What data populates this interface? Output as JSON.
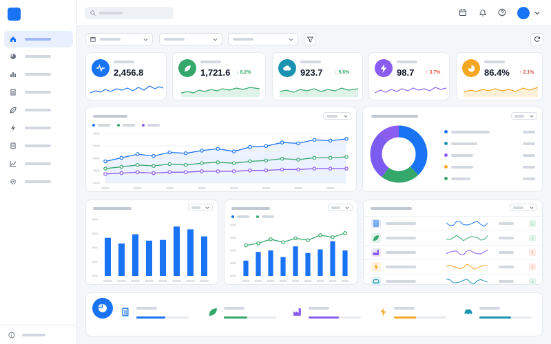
{
  "colors": {
    "accent": "#1a73f2",
    "green": "#34a86b",
    "purple": "#8a5cf0",
    "orange": "#f5a623",
    "teal": "#1a93b0",
    "red": "#e0554b"
  },
  "sidebar": {
    "items": [
      {
        "icon": "home-icon",
        "active": true
      },
      {
        "icon": "pie-chart-icon"
      },
      {
        "icon": "bar-chart-icon"
      },
      {
        "icon": "building-icon"
      },
      {
        "icon": "leaf-icon"
      },
      {
        "icon": "bolt-icon"
      },
      {
        "icon": "document-icon"
      },
      {
        "icon": "line-chart-icon"
      },
      {
        "icon": "gear-icon"
      }
    ],
    "footer_icon": "info-icon"
  },
  "topbar": {
    "icons": [
      "calendar-icon",
      "bell-icon",
      "help-icon",
      "avatar",
      "chevron-down-icon"
    ]
  },
  "kpis": [
    {
      "icon": "activity-icon",
      "color": "#1a73f2",
      "value": "2,456.8",
      "delta": "",
      "trend": "none"
    },
    {
      "icon": "leaf-icon",
      "color": "#34a86b",
      "value": "1,721.6",
      "delta": "↓ 8.2%",
      "trend": "down"
    },
    {
      "icon": "cloud-icon",
      "color": "#1a93b0",
      "value": "923.7",
      "delta": "↓ 5.6%",
      "trend": "down"
    },
    {
      "icon": "bolt-icon",
      "color": "#8a5cf0",
      "value": "98.7",
      "delta": "↑ 3.7%",
      "trend": "up"
    },
    {
      "icon": "pie-chart-icon",
      "color": "#f5a623",
      "value": "86.4%",
      "delta": "↑ 2.1%",
      "trend": "up"
    }
  ],
  "chart_data": [
    {
      "type": "line",
      "series": [
        {
          "values": [
            24,
            28,
            32,
            30,
            34,
            33,
            36,
            38,
            35,
            40,
            41,
            45,
            44,
            48,
            47,
            49
          ]
        },
        {
          "values": [
            16,
            18,
            20,
            19,
            21,
            20,
            22,
            23,
            22,
            24,
            25,
            27,
            26,
            28,
            28,
            29
          ]
        },
        {
          "values": [
            10,
            11,
            12,
            11,
            12,
            12,
            13,
            13,
            13,
            14,
            14,
            15,
            15,
            16,
            16,
            16
          ]
        }
      ],
      "ylim": [
        0,
        55
      ]
    },
    {
      "type": "pie",
      "values": [
        38,
        22,
        28,
        12
      ]
    },
    {
      "type": "bar",
      "values": [
        54,
        46,
        59,
        50,
        51,
        70,
        66,
        56
      ]
    },
    {
      "type": "bar",
      "values": [
        30,
        47,
        50,
        37,
        58,
        45,
        52,
        68,
        50
      ],
      "line": [
        60,
        64,
        72,
        66,
        74,
        70,
        80,
        76,
        84
      ]
    }
  ],
  "table": {
    "rows": [
      {
        "icon": "building-icon",
        "color": "#1a73f2",
        "trend": "down"
      },
      {
        "icon": "leaf-icon",
        "color": "#34a86b",
        "trend": "down"
      },
      {
        "icon": "factory-icon",
        "color": "#8a5cf0",
        "trend": "up"
      },
      {
        "icon": "bolt-icon",
        "color": "#f5a623",
        "trend": "up"
      },
      {
        "icon": "car-icon",
        "color": "#1a93b0",
        "trend": "down"
      }
    ]
  },
  "bottom": {
    "items": [
      {
        "icon": "building-icon",
        "color": "#1a73f2",
        "progress": 0.55
      },
      {
        "icon": "leaf-icon",
        "color": "#34a86b",
        "progress": 0.45
      },
      {
        "icon": "factory-icon",
        "color": "#8a5cf0",
        "progress": 0.58
      },
      {
        "icon": "bolt-icon",
        "color": "#f5a623",
        "progress": 0.42
      },
      {
        "icon": "car-icon",
        "color": "#1a93b0",
        "progress": 0.6
      }
    ]
  }
}
